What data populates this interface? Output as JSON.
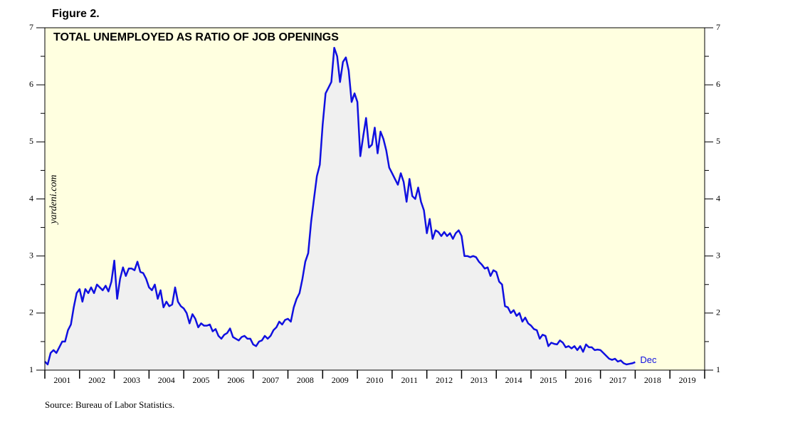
{
  "chart_data": {
    "type": "line",
    "figure_label": "Figure 2.",
    "title": "TOTAL UNEMPLOYED AS RATIO OF JOB OPENINGS",
    "watermark": "yardeni.com",
    "source": "Source: Bureau of Labor Statistics.",
    "annotation": "Dec",
    "color": "#1010e0",
    "area_color": "#f0f0f0",
    "background": "#ffffe0",
    "x": [
      2001,
      2001.083,
      2001.167,
      2001.25,
      2001.333,
      2001.417,
      2001.5,
      2001.583,
      2001.667,
      2001.75,
      2001.833,
      2001.917,
      2002,
      2002.083,
      2002.167,
      2002.25,
      2002.333,
      2002.417,
      2002.5,
      2002.583,
      2002.667,
      2002.75,
      2002.833,
      2002.917,
      2003,
      2003.083,
      2003.167,
      2003.25,
      2003.333,
      2003.417,
      2003.5,
      2003.583,
      2003.667,
      2003.75,
      2003.833,
      2003.917,
      2004,
      2004.083,
      2004.167,
      2004.25,
      2004.333,
      2004.417,
      2004.5,
      2004.583,
      2004.667,
      2004.75,
      2004.833,
      2004.917,
      2005,
      2005.083,
      2005.167,
      2005.25,
      2005.333,
      2005.417,
      2005.5,
      2005.583,
      2005.667,
      2005.75,
      2005.833,
      2005.917,
      2006,
      2006.083,
      2006.167,
      2006.25,
      2006.333,
      2006.417,
      2006.5,
      2006.583,
      2006.667,
      2006.75,
      2006.833,
      2006.917,
      2007,
      2007.083,
      2007.167,
      2007.25,
      2007.333,
      2007.417,
      2007.5,
      2007.583,
      2007.667,
      2007.75,
      2007.833,
      2007.917,
      2008,
      2008.083,
      2008.167,
      2008.25,
      2008.333,
      2008.417,
      2008.5,
      2008.583,
      2008.667,
      2008.75,
      2008.833,
      2008.917,
      2009,
      2009.083,
      2009.167,
      2009.25,
      2009.333,
      2009.417,
      2009.5,
      2009.583,
      2009.667,
      2009.75,
      2009.833,
      2009.917,
      2010,
      2010.083,
      2010.167,
      2010.25,
      2010.333,
      2010.417,
      2010.5,
      2010.583,
      2010.667,
      2010.75,
      2010.833,
      2010.917,
      2011,
      2011.083,
      2011.167,
      2011.25,
      2011.333,
      2011.417,
      2011.5,
      2011.583,
      2011.667,
      2011.75,
      2011.833,
      2011.917,
      2012,
      2012.083,
      2012.167,
      2012.25,
      2012.333,
      2012.417,
      2012.5,
      2012.583,
      2012.667,
      2012.75,
      2012.833,
      2012.917,
      2013,
      2013.083,
      2013.167,
      2013.25,
      2013.333,
      2013.417,
      2013.5,
      2013.583,
      2013.667,
      2013.75,
      2013.833,
      2013.917,
      2014,
      2014.083,
      2014.167,
      2014.25,
      2014.333,
      2014.417,
      2014.5,
      2014.583,
      2014.667,
      2014.75,
      2014.833,
      2014.917,
      2015,
      2015.083,
      2015.167,
      2015.25,
      2015.333,
      2015.417,
      2015.5,
      2015.583,
      2015.667,
      2015.75,
      2015.833,
      2015.917,
      2016,
      2016.083,
      2016.167,
      2016.25,
      2016.333,
      2016.417,
      2016.5,
      2016.583,
      2016.667,
      2016.75,
      2016.833,
      2016.917,
      2017,
      2017.083,
      2017.167,
      2017.25,
      2017.333,
      2017.417,
      2017.5,
      2017.583,
      2017.667,
      2017.75,
      2017.833,
      2017.917,
      2018
    ],
    "values": [
      1.15,
      1.1,
      1.3,
      1.35,
      1.3,
      1.4,
      1.5,
      1.5,
      1.7,
      1.8,
      2.1,
      2.35,
      2.42,
      2.2,
      2.42,
      2.35,
      2.45,
      2.35,
      2.5,
      2.45,
      2.4,
      2.48,
      2.38,
      2.55,
      2.92,
      2.25,
      2.6,
      2.8,
      2.65,
      2.78,
      2.78,
      2.75,
      2.9,
      2.72,
      2.7,
      2.6,
      2.45,
      2.4,
      2.5,
      2.25,
      2.4,
      2.1,
      2.2,
      2.12,
      2.15,
      2.45,
      2.2,
      2.12,
      2.08,
      2.0,
      1.82,
      1.98,
      1.9,
      1.75,
      1.82,
      1.78,
      1.78,
      1.8,
      1.68,
      1.72,
      1.6,
      1.55,
      1.62,
      1.65,
      1.73,
      1.58,
      1.55,
      1.52,
      1.58,
      1.6,
      1.55,
      1.55,
      1.45,
      1.42,
      1.5,
      1.52,
      1.6,
      1.55,
      1.6,
      1.7,
      1.75,
      1.85,
      1.8,
      1.88,
      1.9,
      1.85,
      2.1,
      2.25,
      2.35,
      2.6,
      2.9,
      3.05,
      3.6,
      4.0,
      4.4,
      4.6,
      5.3,
      5.85,
      5.95,
      6.05,
      6.65,
      6.5,
      6.05,
      6.4,
      6.48,
      6.25,
      5.7,
      5.85,
      5.7,
      4.75,
      5.1,
      5.42,
      4.9,
      4.95,
      5.25,
      4.8,
      5.18,
      5.05,
      4.85,
      4.55,
      4.45,
      4.35,
      4.25,
      4.45,
      4.3,
      3.95,
      4.35,
      4.05,
      4.0,
      4.2,
      3.95,
      3.8,
      3.4,
      3.65,
      3.3,
      3.45,
      3.42,
      3.35,
      3.42,
      3.35,
      3.4,
      3.3,
      3.4,
      3.45,
      3.35,
      3.0,
      3.0,
      2.98,
      3.0,
      2.98,
      2.9,
      2.85,
      2.78,
      2.8,
      2.65,
      2.75,
      2.72,
      2.55,
      2.5,
      2.12,
      2.1,
      2.0,
      2.05,
      1.95,
      2.0,
      1.85,
      1.92,
      1.82,
      1.78,
      1.72,
      1.7,
      1.55,
      1.62,
      1.6,
      1.42,
      1.48,
      1.46,
      1.45,
      1.52,
      1.48,
      1.4,
      1.42,
      1.38,
      1.42,
      1.35,
      1.42,
      1.32,
      1.45,
      1.4,
      1.4,
      1.35,
      1.36,
      1.35,
      1.3,
      1.25,
      1.2,
      1.18,
      1.2,
      1.15,
      1.17,
      1.12,
      1.1,
      1.11,
      1.12,
      1.14
    ],
    "xlim": [
      2001,
      2020
    ],
    "xticks": [
      2001,
      2002,
      2003,
      2004,
      2005,
      2006,
      2007,
      2008,
      2009,
      2010,
      2011,
      2012,
      2013,
      2014,
      2015,
      2016,
      2017,
      2018,
      2019,
      2020
    ],
    "x_labels": [
      "2001",
      "2002",
      "2003",
      "2004",
      "2005",
      "2006",
      "2007",
      "2008",
      "2009",
      "2010",
      "2011",
      "2012",
      "2013",
      "2014",
      "2015",
      "2016",
      "2017",
      "2018",
      "2019"
    ],
    "ylim": [
      1,
      7
    ],
    "yticks": [
      1,
      2,
      3,
      4,
      5,
      6,
      7
    ],
    "yminorticks": [
      1.5,
      2.5,
      3.5,
      4.5,
      5.5,
      6.5
    ]
  }
}
